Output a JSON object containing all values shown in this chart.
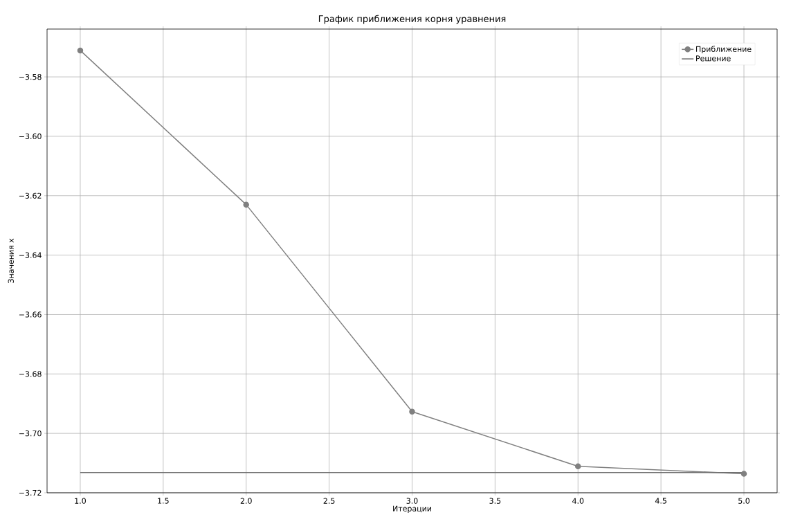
{
  "chart_data": {
    "type": "line",
    "title": "График приближения корня уравнения",
    "xlabel": "Итерации",
    "ylabel": "Значения x",
    "x": [
      1,
      2,
      3,
      4,
      5
    ],
    "series": [
      {
        "name": "Приближение",
        "color": "#808080",
        "marker": "circle",
        "values": [
          -3.5711,
          -3.623,
          -3.6927,
          -3.7111,
          -3.7136
        ]
      },
      {
        "name": "Решение",
        "color": "#6e6e6e",
        "marker": "none",
        "x": [
          1,
          5
        ],
        "values": [
          -3.7132,
          -3.7132
        ]
      }
    ],
    "xlim": [
      0.8,
      5.2
    ],
    "ylim": [
      -3.72,
      -3.5639
    ],
    "xticks": [
      {
        "value": 1,
        "label": "1.0"
      },
      {
        "value": 1.5,
        "label": "1.5"
      },
      {
        "value": 2,
        "label": "2.0"
      },
      {
        "value": 2.5,
        "label": "2.5"
      },
      {
        "value": 3,
        "label": "3.0"
      },
      {
        "value": 3.5,
        "label": "3.5"
      },
      {
        "value": 4,
        "label": "4.0"
      },
      {
        "value": 4.5,
        "label": "4.5"
      },
      {
        "value": 5,
        "label": "5.0"
      }
    ],
    "yticks": [
      {
        "value": -3.72,
        "label": "−3.72"
      },
      {
        "value": -3.7,
        "label": "−3.70"
      },
      {
        "value": -3.68,
        "label": "−3.68"
      },
      {
        "value": -3.66,
        "label": "−3.66"
      },
      {
        "value": -3.64,
        "label": "−3.64"
      },
      {
        "value": -3.62,
        "label": "−3.62"
      },
      {
        "value": -3.6,
        "label": "−3.60"
      },
      {
        "value": -3.58,
        "label": "−3.58"
      }
    ],
    "grid": true,
    "legend": "top right"
  }
}
